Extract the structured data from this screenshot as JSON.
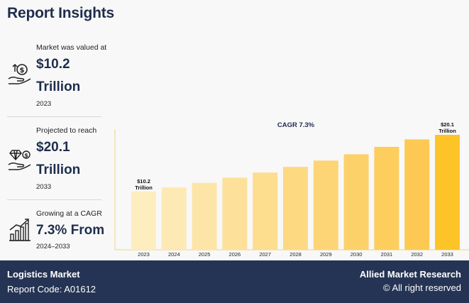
{
  "title": "Report Insights",
  "stats": [
    {
      "lead": "Market was valued at",
      "value_line1": "$10.2",
      "value_line2": "Trillion",
      "year": "2023",
      "icon": "money-hand-icon"
    },
    {
      "lead": "Projected to reach",
      "value_line1": "$20.1",
      "value_line2": "Trillion",
      "year": "2033",
      "icon": "diamond-hand-icon"
    },
    {
      "lead": "Growing at a CAGR",
      "value_line1": "7.3% From",
      "year": "2024–2033",
      "icon": "growth-chart-icon"
    }
  ],
  "chart_data": {
    "type": "bar",
    "annotation": "CAGR 7.3%",
    "categories": [
      "2023",
      "2024",
      "2025",
      "2026",
      "2027",
      "2028",
      "2029",
      "2030",
      "2031",
      "2032",
      "2033"
    ],
    "values": [
      10.2,
      10.9,
      11.7,
      12.6,
      13.5,
      14.5,
      15.6,
      16.7,
      18.0,
      19.3,
      20.1
    ],
    "labels": [
      {
        "index": 0,
        "line1": "$10.2",
        "line2": "Trillion"
      },
      {
        "index": 10,
        "line1": "$20.1",
        "line2": "Trillion"
      }
    ],
    "colors": [
      "#fdedbf",
      "#fde9b3",
      "#fde5a7",
      "#fde19b",
      "#fddd8e",
      "#fdd982",
      "#fdd576",
      "#fdd16a",
      "#fdcd5e",
      "#fdc952",
      "#fdc428"
    ],
    "axis_color": "#f3d27a"
  },
  "footer": {
    "market": "Logistics Market",
    "report_code": "Report Code: A01612",
    "brand": "Allied Market Research",
    "rights": "© All right reserved"
  }
}
